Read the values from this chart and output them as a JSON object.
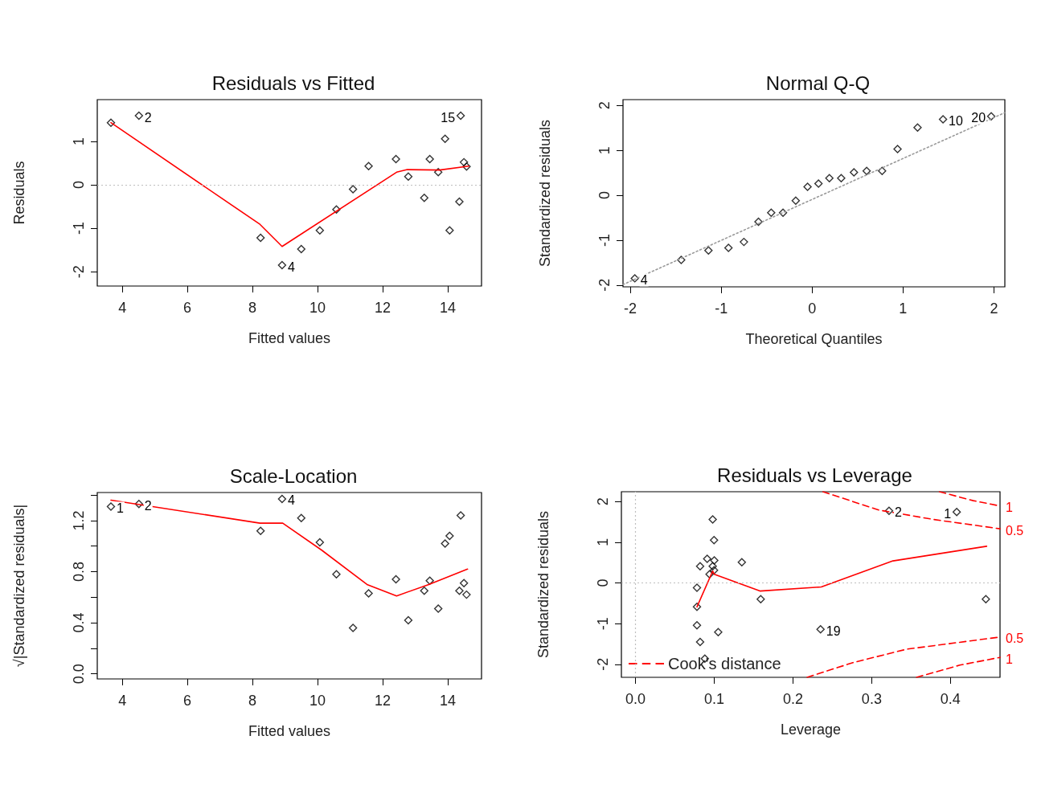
{
  "chart_data": [
    {
      "type": "scatter",
      "title": "Residuals vs Fitted",
      "xlabel": "Fitted values",
      "ylabel": "Residuals",
      "xlim": [
        3.23,
        15.04
      ],
      "ylim": [
        -2.33,
        1.96
      ],
      "xticks": [
        4,
        6,
        8,
        10,
        12,
        14
      ],
      "yticks": [
        -2,
        -1,
        0,
        1
      ],
      "ref_lines": [
        {
          "axis": "y",
          "value": 0,
          "color": "#bebebe",
          "line_style": "dotted"
        }
      ],
      "series": [
        {
          "color": "#000000",
          "marker": "diamond",
          "x": [
            3.65,
            4.51,
            8.25,
            8.91,
            9.5,
            10.07,
            10.58,
            11.09,
            11.57,
            12.41,
            12.79,
            13.28,
            13.45,
            13.71,
            13.92,
            14.06,
            14.36,
            14.4,
            14.5,
            14.58
          ],
          "values": [
            1.43,
            1.59,
            -1.22,
            -1.85,
            -1.48,
            -1.05,
            -0.57,
            -0.1,
            0.43,
            0.59,
            0.19,
            -0.3,
            0.59,
            0.29,
            1.06,
            -1.05,
            -0.39,
            1.59,
            0.52,
            0.42
          ]
        },
        {
          "type": "line",
          "color": "#ff0000",
          "x": [
            3.65,
            8.23,
            8.91,
            12.43,
            12.76,
            13.75,
            14.65
          ],
          "values": [
            1.43,
            -0.91,
            -1.42,
            0.29,
            0.35,
            0.34,
            0.43
          ]
        }
      ],
      "annotations": [
        {
          "text": "2",
          "x": 4.51,
          "y": 1.59
        },
        {
          "text": "4",
          "x": 8.91,
          "y": -1.85
        },
        {
          "text": "15",
          "x": 14.4,
          "y": 1.59
        }
      ]
    },
    {
      "type": "scatter",
      "title": "Normal Q-Q",
      "xlabel": "Theoretical Quantiles",
      "ylabel": "Standardized residuals",
      "xlim": [
        -2.08,
        2.12
      ],
      "ylim": [
        -2.04,
        2.13
      ],
      "xticks": [
        -2,
        -1,
        0,
        1,
        2
      ],
      "yticks": [
        -2,
        -1,
        0,
        1,
        2
      ],
      "series": [
        {
          "color": "#000000",
          "marker": "diamond",
          "x": [
            -1.95,
            -1.44,
            -1.14,
            -0.92,
            -0.75,
            -0.59,
            -0.45,
            -0.32,
            -0.18,
            -0.05,
            0.07,
            0.19,
            0.32,
            0.46,
            0.6,
            0.77,
            0.94,
            1.16,
            1.44,
            1.97
          ],
          "values": [
            -1.85,
            -1.44,
            -1.23,
            -1.17,
            -1.04,
            -0.59,
            -0.39,
            -0.39,
            -0.12,
            0.19,
            0.26,
            0.38,
            0.38,
            0.51,
            0.54,
            0.54,
            1.03,
            1.51,
            1.69,
            1.76
          ]
        },
        {
          "type": "line",
          "color": "#999999",
          "line_style": "dotted",
          "x": [
            -2.08,
            2.12
          ],
          "values": [
            -1.99,
            1.84
          ]
        }
      ],
      "annotations": [
        {
          "text": "4",
          "x": -1.95,
          "y": -1.85
        },
        {
          "text": "10",
          "x": 1.44,
          "y": 1.69
        },
        {
          "text": "20",
          "x": 1.97,
          "y": 1.76
        }
      ]
    },
    {
      "type": "scatter",
      "title": "Scale-Location",
      "xlabel": "Fitted values",
      "ylabel": "√|Standardized residuals|",
      "xlim": [
        3.23,
        15.04
      ],
      "ylim": [
        -0.04,
        1.42
      ],
      "xticks": [
        4,
        6,
        8,
        10,
        12,
        14
      ],
      "yticks": [
        {
          "value": 0,
          "label": "0.0"
        },
        {
          "value": 0.2,
          "label": null
        },
        0.4,
        {
          "value": 0.6,
          "label": null
        },
        0.8,
        {
          "value": 1,
          "label": null
        },
        1.2,
        {
          "value": 1.4,
          "label": null
        }
      ],
      "series": [
        {
          "color": "#000000",
          "marker": "diamond",
          "x": [
            3.65,
            4.51,
            8.25,
            8.91,
            9.5,
            10.07,
            10.58,
            11.09,
            11.57,
            12.41,
            12.79,
            13.28,
            13.45,
            13.71,
            13.92,
            14.06,
            14.36,
            14.4,
            14.5,
            14.58
          ],
          "values": [
            1.31,
            1.33,
            1.12,
            1.37,
            1.22,
            1.03,
            0.78,
            0.36,
            0.63,
            0.74,
            0.42,
            0.65,
            0.73,
            0.51,
            1.02,
            1.08,
            0.65,
            1.24,
            0.71,
            0.62
          ]
        },
        {
          "type": "line",
          "color": "#ff0000",
          "x": [
            3.65,
            8.23,
            8.93,
            10.12,
            11.52,
            12.43,
            13.42,
            14.61
          ],
          "values": [
            1.36,
            1.18,
            1.18,
            0.97,
            0.7,
            0.61,
            0.7,
            0.82
          ]
        }
      ],
      "annotations": [
        {
          "text": "1",
          "x": 3.65,
          "y": 1.31
        },
        {
          "text": "2",
          "x": 4.51,
          "y": 1.33
        },
        {
          "text": "4",
          "x": 8.91,
          "y": 1.37
        }
      ]
    },
    {
      "type": "scatter",
      "title": "Residuals vs Leverage",
      "xlabel": "Leverage",
      "ylabel": "Standardized residuals",
      "xlim": [
        -0.018,
        0.463
      ],
      "ylim": [
        -2.32,
        2.24
      ],
      "xticks": [
        {
          "value": 0,
          "label": "0.0"
        },
        0.1,
        0.2,
        0.3,
        0.4
      ],
      "yticks": [
        -2,
        -1,
        0,
        1,
        2
      ],
      "legend": "bottom left",
      "ref_lines": [
        {
          "axis": "y",
          "value": 0,
          "color": "#bebebe",
          "line_style": "dotted"
        },
        {
          "axis": "x",
          "value": 0,
          "color": "#bebebe",
          "line_style": "dotted"
        }
      ],
      "series": [
        {
          "color": "#000000",
          "marker": "diamond",
          "x": [
            0.098,
            0.0997,
            0.091,
            0.082,
            0.1,
            0.098,
            0.0997,
            0.094,
            0.135,
            0.078,
            0.078,
            0.159,
            0.078,
            0.105,
            0.235,
            0.082,
            0.088,
            0.322,
            0.408,
            0.445
          ],
          "values": [
            1.56,
            1.05,
            0.59,
            0.41,
            0.55,
            0.41,
            0.31,
            0.21,
            0.51,
            -0.12,
            -0.59,
            -0.4,
            -1.04,
            -1.21,
            -1.14,
            -1.45,
            -1.86,
            1.77,
            1.74,
            -0.4
          ]
        },
        {
          "type": "line",
          "color": "#ff0000",
          "x": [
            0.078,
            0.098,
            0.1,
            0.158,
            0.236,
            0.327,
            0.446
          ],
          "values": [
            -0.59,
            0.29,
            0.21,
            -0.2,
            -0.1,
            0.54,
            0.9
          ]
        },
        {
          "type": "line",
          "name": "Cook's distance",
          "color": "#ff0000",
          "line_style": "dashed",
          "x": [
            0.238,
            0.309,
            0.378,
            0.463
          ],
          "values": [
            2.24,
            1.79,
            1.56,
            1.33
          ]
        },
        {
          "type": "line",
          "color": "#ff0000",
          "line_style": "dashed",
          "x": [
            0.386,
            0.429,
            0.463
          ],
          "values": [
            2.24,
            2.02,
            1.89
          ]
        },
        {
          "type": "line",
          "color": "#ff0000",
          "line_style": "dashed",
          "x": [
            0.218,
            0.276,
            0.344,
            0.463
          ],
          "values": [
            -2.32,
            -1.96,
            -1.63,
            -1.33
          ]
        },
        {
          "type": "line",
          "color": "#ff0000",
          "line_style": "dashed",
          "x": [
            0.357,
            0.412,
            0.463
          ],
          "values": [
            -2.32,
            -2.02,
            -1.83
          ]
        }
      ],
      "annotations": [
        {
          "text": "2",
          "x": 0.322,
          "y": 1.77
        },
        {
          "text": "1",
          "x": 0.408,
          "y": 1.74
        },
        {
          "text": "19",
          "x": 0.235,
          "y": -1.14
        },
        {
          "text": "1",
          "x": 0.463,
          "y": 1.89
        },
        {
          "text": "0.5",
          "x": 0.463,
          "y": 1.33
        },
        {
          "text": "0.5",
          "x": 0.463,
          "y": -1.33
        },
        {
          "text": "1",
          "x": 0.463,
          "y": -1.83
        }
      ]
    }
  ]
}
